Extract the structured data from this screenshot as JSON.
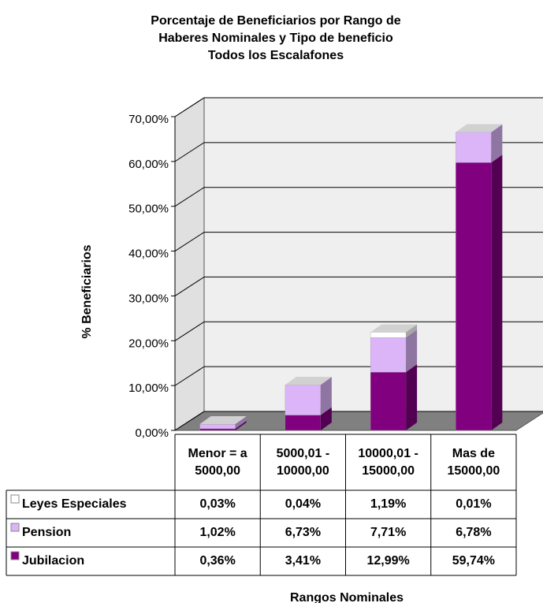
{
  "chart_data": {
    "type": "bar3d_stacked",
    "title": "Porcentaje de Beneficiarios por Rango de\nHaberes Nominales y Tipo de beneficio\nTodos los Escalafones",
    "y_label": "% Beneficiarios",
    "x_label": "Rangos Nominales",
    "categories": [
      "Menor = a\n5000,00",
      "5000,01 -\n10000,00",
      "10000,01 -\n15000,00",
      "Mas de\n15000,00"
    ],
    "series": [
      {
        "name": "Leyes Especiales",
        "color": "#ffffff",
        "values": [
          0.03,
          0.04,
          1.19,
          0.01
        ],
        "value_labels": [
          "0,03%",
          "0,04%",
          "1,19%",
          "0,01%"
        ]
      },
      {
        "name": "Pension",
        "color": "#dcb4f8",
        "values": [
          1.02,
          6.73,
          7.71,
          6.78
        ],
        "value_labels": [
          "1,02%",
          "6,73%",
          "7,71%",
          "6,78%"
        ]
      },
      {
        "name": "Jubilacion",
        "color": "#800080",
        "values": [
          0.36,
          3.41,
          12.99,
          59.74
        ],
        "value_labels": [
          "0,36%",
          "3,41%",
          "12,99%",
          "59,74%"
        ]
      }
    ],
    "ylim": [
      0,
      70
    ],
    "yticks": [
      {
        "value": 0,
        "label": "0,00%"
      },
      {
        "value": 10,
        "label": "10,00%"
      },
      {
        "value": 20,
        "label": "20,00%"
      },
      {
        "value": 30,
        "label": "30,00%"
      },
      {
        "value": 40,
        "label": "40,00%"
      },
      {
        "value": 50,
        "label": "50,00%"
      },
      {
        "value": 60,
        "label": "60,00%"
      },
      {
        "value": 70,
        "label": "70,00%"
      }
    ],
    "grid": true
  }
}
